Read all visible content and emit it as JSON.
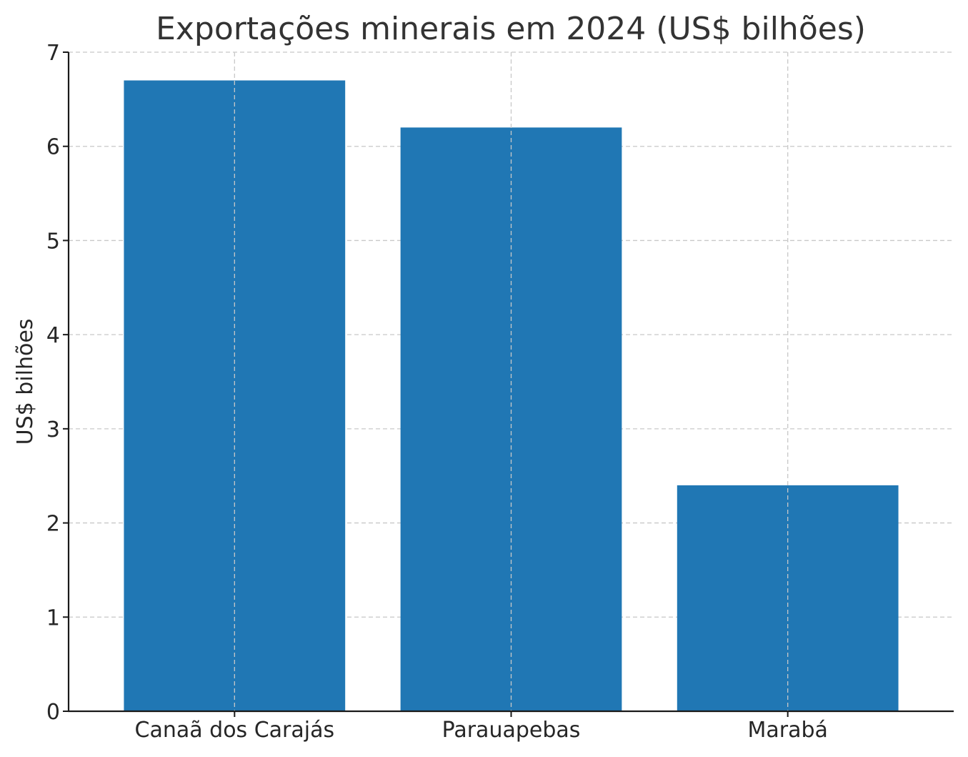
{
  "chart_data": {
    "type": "bar",
    "title": "Exportações minerais em 2024 (US$ bilhões)",
    "xlabel": "",
    "ylabel": "US$ bilhões",
    "categories": [
      "Canaã dos Carajás",
      "Parauapebas",
      "Marabá"
    ],
    "values": [
      6.7,
      6.2,
      2.4
    ],
    "ylim": [
      0,
      7
    ],
    "yticks": [
      "0",
      "1",
      "2",
      "3",
      "4",
      "5",
      "6",
      "7"
    ],
    "grid": true,
    "bar_color": "#2077b4"
  }
}
